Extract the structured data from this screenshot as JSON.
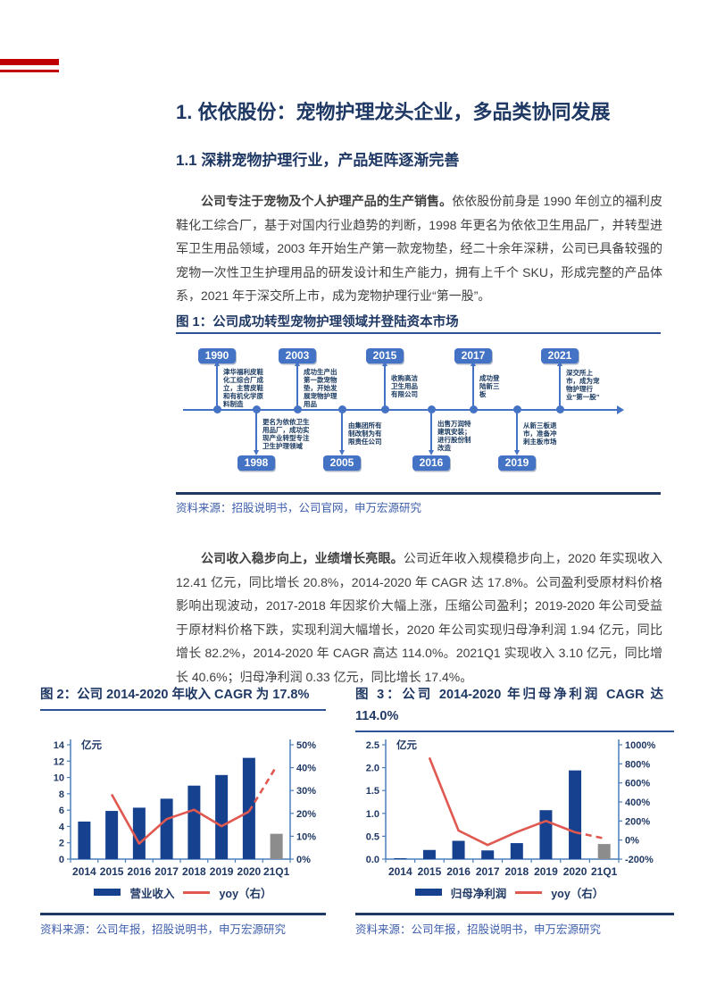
{
  "headings": {
    "section": "1. 依依股份：宠物护理龙头企业，多品类协同发展",
    "subsection": "1.1 深耕宠物护理行业，产品矩阵逐渐完善"
  },
  "paragraphs": {
    "p1_lead": "公司专注于宠物及个人护理产品的生产销售。",
    "p1_rest": "依依股份前身是 1990 年创立的福利皮鞋化工综合厂，基于对国内行业趋势的判断，1998 年更名为依依卫生用品厂，并转型进军卫生用品领域，2003 年开始生产第一款宠物垫，经二十余年深耕，公司已具备较强的宠物一次性卫生护理用品的研发设计和生产能力，拥有上千个 SKU，形成完整的产品体系，2021 年于深交所上市，成为宠物护理行业“第一股”。",
    "p2_lead": "公司收入稳步向上，业绩增长亮眼。",
    "p2_rest": "公司近年收入规模稳步向上，2020 年实现收入 12.41 亿元，同比增长 20.8%，2014-2020 年 CAGR 达 17.8%。公司盈利受原材料价格影响出现波动，2017-2018 年因浆价大幅上涨，压缩公司盈利；2019-2020 年公司受益于原材料价格下跌，实现利润大幅增长，2020 年公司实现归母净利润 1.94 亿元，同比增长 82.2%，2014-2020 年 CAGR 高达 114.0%。2021Q1 实现收入 3.10 亿元，同比增长 40.6%；归母净利润 0.33 亿元，同比增长 17.4%。"
  },
  "figure1": {
    "caption": "图 1：公司成功转型宠物护理领域并登陆资本市场",
    "source": "资料来源：招股说明书，公司官网，申万宏源研究",
    "timeline": {
      "milestones": [
        {
          "year": "1990",
          "side": "top",
          "text": "津华福利皮鞋化工综合厂成立，主营皮鞋和有机化学原料制造"
        },
        {
          "year": "1998",
          "side": "bottom",
          "text": "更名为依依卫生用品厂，成功实现产业转型专注卫生护理领域"
        },
        {
          "year": "2003",
          "side": "top",
          "text": "成功生产出第一款宠物垫，开始发展宠物护理用品"
        },
        {
          "year": "2005",
          "side": "bottom",
          "text": "由集团所有制改制为有限责任公司"
        },
        {
          "year": "2015",
          "side": "top",
          "text": "收购高洁卫生用品有限公司"
        },
        {
          "year": "2016",
          "side": "bottom",
          "text": "出售万润特建筑安装；进行股份制改造"
        },
        {
          "year": "2017",
          "side": "top",
          "text": "成功登陆新三板"
        },
        {
          "year": "2019",
          "side": "bottom",
          "text": "从新三板退市，准备冲刺主板市场"
        },
        {
          "year": "2021",
          "side": "top",
          "text": "深交所上市，成为宠物护理行业“第一股”"
        }
      ]
    }
  },
  "chart_data": [
    {
      "type": "bar",
      "title": "图 2：公司 2014-2020 年收入 CAGR 为 17.8%",
      "source": "资料来源：公司年报，招股说明书，申万宏源研究",
      "unit": "亿元",
      "categories": [
        "2014",
        "2015",
        "2016",
        "2017",
        "2018",
        "2019",
        "2020",
        "21Q1"
      ],
      "series": [
        {
          "name": "营业收入",
          "type": "bar",
          "axis": "left",
          "values": [
            4.6,
            5.9,
            6.3,
            7.4,
            9.0,
            10.3,
            12.4,
            3.1
          ]
        },
        {
          "name": "yoy（右）",
          "type": "line",
          "axis": "right",
          "dash_last_segment": true,
          "values": [
            null,
            28.3,
            6.8,
            17.5,
            21.6,
            14.4,
            20.8,
            40.6
          ]
        }
      ],
      "left_axis": {
        "min": 0,
        "max": 14,
        "labels": [
          "0",
          "2",
          "4",
          "6",
          "8",
          "10",
          "12",
          "14"
        ]
      },
      "right_axis": {
        "min": 0,
        "max": 50,
        "labels": [
          "0%",
          "10%",
          "20%",
          "30%",
          "40%",
          "50%"
        ]
      },
      "bar_color": "#16418F",
      "last_bar_color": "#8C8C8C",
      "line_color": "#E0584F",
      "axis_color": "#4A7EBB",
      "legend_position": "bottom",
      "grid": false
    },
    {
      "type": "bar",
      "title": "图 3：公司 2014-2020 年归母净利润 CAGR 达 114.0%",
      "source": "资料来源：公司年报，招股说明书，申万宏源研究",
      "unit": "亿元",
      "categories": [
        "2014",
        "2015",
        "2016",
        "2017",
        "2018",
        "2019",
        "2020",
        "21Q1"
      ],
      "series": [
        {
          "name": "归母净利润",
          "type": "bar",
          "axis": "left",
          "values": [
            0.02,
            0.2,
            0.4,
            0.19,
            0.35,
            1.07,
            1.94,
            0.33
          ]
        },
        {
          "name": "yoy（右）",
          "type": "line",
          "axis": "right",
          "dash_last_segment": true,
          "values": [
            null,
            865,
            100,
            -52,
            84,
            200,
            82,
            17
          ]
        }
      ],
      "left_axis": {
        "min": 0,
        "max": 2.5,
        "labels": [
          "0.0",
          "0.5",
          "1.0",
          "1.5",
          "2.0",
          "2.5"
        ]
      },
      "right_axis": {
        "min": -200,
        "max": 1000,
        "labels": [
          "-200%",
          "0%",
          "200%",
          "400%",
          "600%",
          "800%",
          "1000%"
        ]
      },
      "bar_color": "#16418F",
      "last_bar_color": "#8C8C8C",
      "line_color": "#E0584F",
      "axis_color": "#4A7EBB",
      "legend_position": "bottom",
      "grid": false
    }
  ],
  "colors": {
    "accent_red": "#C00000",
    "heading_navy": "#1F3864",
    "body_text": "#3F3F3F",
    "source_blue": "#3D5EAC",
    "timeline_blue": "#4472C4",
    "caption_rule_blue": "#2E5395"
  }
}
